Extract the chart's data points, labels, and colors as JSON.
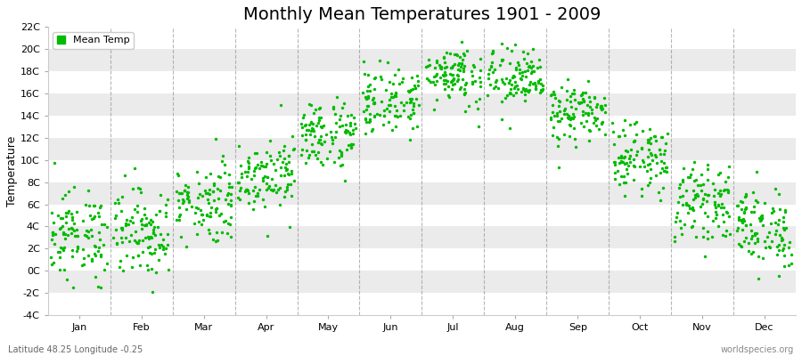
{
  "title": "Monthly Mean Temperatures 1901 - 2009",
  "ylabel": "Temperature",
  "bottom_left": "Latitude 48.25 Longitude -0.25",
  "bottom_right": "worldspecies.org",
  "legend_label": "Mean Temp",
  "dot_color": "#00bb00",
  "background_color": "#ffffff",
  "band_color": "#ebebeb",
  "months": [
    "Jan",
    "Feb",
    "Mar",
    "Apr",
    "May",
    "Jun",
    "Jul",
    "Aug",
    "Sep",
    "Oct",
    "Nov",
    "Dec"
  ],
  "ylim": [
    -4,
    22
  ],
  "yticks": [
    -4,
    -2,
    0,
    2,
    4,
    6,
    8,
    10,
    12,
    14,
    16,
    18,
    20,
    22
  ],
  "ytick_labels": [
    "-4C",
    "-2C",
    "0C",
    "2C",
    "4C",
    "6C",
    "8C",
    "10C",
    "12C",
    "14C",
    "16C",
    "18C",
    "20C",
    "22C"
  ],
  "n_years": 109,
  "monthly_means": [
    3.2,
    3.5,
    6.2,
    8.8,
    12.3,
    15.3,
    17.8,
    17.3,
    14.2,
    10.2,
    6.2,
    3.8
  ],
  "monthly_stds": [
    2.0,
    2.0,
    1.8,
    1.6,
    1.6,
    1.5,
    1.4,
    1.4,
    1.3,
    1.5,
    1.6,
    1.8
  ],
  "dashed_line_color": "#888888",
  "tick_color": "#aaaaaa",
  "spine_color": "#cccccc",
  "font_size_title": 14,
  "font_size_ticks": 8,
  "font_size_label": 9,
  "font_size_legend": 8,
  "font_size_bottom": 7,
  "dot_size": 6
}
